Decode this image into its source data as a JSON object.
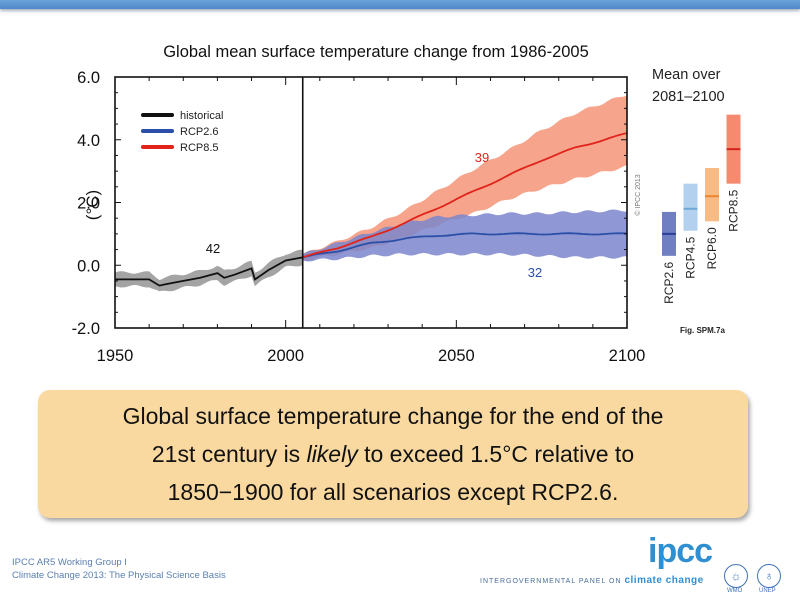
{
  "slide": {
    "callout": {
      "line1": "Global surface temperature change for the end of the",
      "line2_pre": "21st century is ",
      "line2_em": "likely",
      "line2_post": " to exceed 1.5°C relative to",
      "line3": "1850−1900 for all scenarios except RCP2.6."
    },
    "footer": {
      "line1": "IPCC AR5 Working Group I",
      "line2": "Climate Change 2013: The Physical Science Basis",
      "logo": "ipcc",
      "logo_sub_pre": "INTERGOVERNMENTAL PANEL ON ",
      "logo_sub_em": "climate change",
      "partners": [
        "WMO",
        "UNEP"
      ]
    }
  },
  "chart_data": {
    "type": "line",
    "title": "Global mean surface temperature change from 1986-2005",
    "ylabel": "(°C)",
    "xlabel": "",
    "xlim": [
      1950,
      2100
    ],
    "ylim": [
      -2.0,
      6.0
    ],
    "xticks": [
      1950,
      2000,
      2050,
      2100
    ],
    "yticks": [
      "-2.0",
      "0.0",
      "2.0",
      "4.0",
      "6.0"
    ],
    "divider_year": 2005,
    "copyright": "© IPCC 2013",
    "legend": {
      "placement": "top-left",
      "entries": [
        {
          "label": "historical",
          "color": "#111111"
        },
        {
          "label": "RCP2.6",
          "color": "#2b4fa8"
        },
        {
          "label": "RCP8.5",
          "color": "#e0241b"
        }
      ]
    },
    "series": [
      {
        "name": "historical",
        "model_count": "42",
        "color": "#111111",
        "band_color": "#9a9a9a",
        "x": [
          1950,
          1955,
          1960,
          1963,
          1965,
          1970,
          1975,
          1980,
          1982,
          1985,
          1990,
          1991,
          1993,
          1995,
          2000,
          2005
        ],
        "mean": [
          -0.45,
          -0.45,
          -0.45,
          -0.65,
          -0.6,
          -0.5,
          -0.4,
          -0.25,
          -0.4,
          -0.3,
          -0.1,
          -0.45,
          -0.3,
          -0.15,
          0.15,
          0.25
        ],
        "spread": 0.22
      },
      {
        "name": "RCP2.6",
        "model_count": "32",
        "color": "#2b4fa8",
        "band_color": "#7b86cc",
        "x": [
          2005,
          2015,
          2025,
          2035,
          2045,
          2055,
          2065,
          2075,
          2085,
          2100
        ],
        "mean": [
          0.25,
          0.45,
          0.7,
          0.85,
          0.95,
          1.0,
          1.0,
          1.0,
          1.0,
          1.0
        ],
        "low": [
          0.15,
          0.2,
          0.3,
          0.35,
          0.35,
          0.35,
          0.35,
          0.3,
          0.25,
          0.25
        ],
        "high": [
          0.35,
          0.7,
          1.05,
          1.35,
          1.55,
          1.6,
          1.65,
          1.65,
          1.7,
          1.75
        ]
      },
      {
        "name": "RCP8.5",
        "model_count": "39",
        "color": "#e0241b",
        "band_color": "#f59b80",
        "x": [
          2005,
          2015,
          2025,
          2035,
          2045,
          2055,
          2065,
          2075,
          2085,
          2100
        ],
        "mean": [
          0.25,
          0.55,
          0.9,
          1.35,
          1.85,
          2.35,
          2.85,
          3.35,
          3.75,
          4.2
        ],
        "low": [
          0.15,
          0.35,
          0.55,
          0.9,
          1.3,
          1.65,
          2.1,
          2.45,
          2.75,
          3.15
        ],
        "high": [
          0.35,
          0.75,
          1.2,
          1.75,
          2.4,
          3.05,
          3.65,
          4.3,
          4.85,
          5.45
        ]
      }
    ],
    "side_panel": {
      "title_line1": "Mean over",
      "title_line2": "2081–2100",
      "caption": "Fig. SPM.7a",
      "bars": [
        {
          "label": "RCP2.6",
          "low": 0.3,
          "high": 1.7,
          "mean": 1.0,
          "color": "#6f7fc2",
          "mean_color": "#2b3f96"
        },
        {
          "label": "RCP4.5",
          "low": 1.1,
          "high": 2.6,
          "mean": 1.8,
          "color": "#b3d1ee",
          "mean_color": "#6fa7d8"
        },
        {
          "label": "RCP6.0",
          "low": 1.4,
          "high": 3.1,
          "mean": 2.2,
          "color": "#f9bb84",
          "mean_color": "#ee8432"
        },
        {
          "label": "RCP8.5",
          "low": 2.6,
          "high": 4.8,
          "mean": 3.7,
          "color": "#f58a6f",
          "mean_color": "#d6231a"
        }
      ]
    }
  }
}
